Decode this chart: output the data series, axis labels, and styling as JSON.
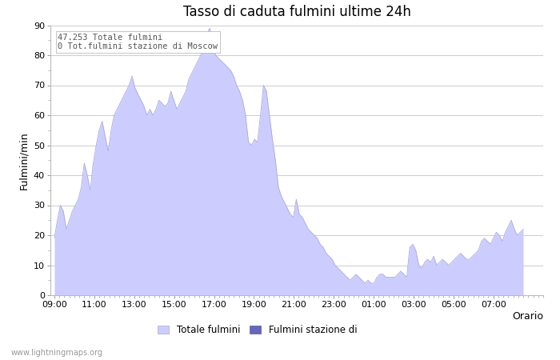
{
  "title": "Tasso di caduta fulmini ultime 24h",
  "xlabel": "Orario",
  "ylabel": "Fulmini/min",
  "ylim": [
    0,
    90
  ],
  "annotation": "47.253 Totale fulmini\n0 Tot.fulmini stazione di Moscow",
  "legend_labels": [
    "Totale fulmini",
    "Fulmini stazione di"
  ],
  "fill_color": "#ccccff",
  "fill_color2": "#6666bb",
  "watermark": "www.lightningmaps.org",
  "x_ticks": [
    "09:00",
    "11:00",
    "13:00",
    "15:00",
    "17:00",
    "19:00",
    "21:00",
    "23:00",
    "01:00",
    "03:00",
    "05:00",
    "07:00"
  ],
  "background_color": "#ffffff",
  "grid_color": "#cccccc",
  "y_values": [
    19,
    25,
    30,
    28,
    22,
    25,
    28,
    30,
    32,
    36,
    44,
    40,
    35,
    44,
    50,
    55,
    58,
    53,
    48,
    55,
    60,
    62,
    64,
    66,
    68,
    70,
    73,
    69,
    67,
    65,
    63,
    60,
    62,
    60,
    62,
    65,
    64,
    63,
    64,
    68,
    65,
    62,
    64,
    66,
    68,
    72,
    74,
    76,
    78,
    80,
    83,
    87,
    89,
    84,
    80,
    79,
    78,
    77,
    76,
    75,
    73,
    70,
    68,
    65,
    60,
    51,
    50,
    52,
    51,
    60,
    70,
    68,
    60,
    52,
    45,
    36,
    33,
    31,
    29,
    27,
    26,
    32,
    27,
    26,
    24,
    22,
    21,
    20,
    19,
    17,
    16,
    14,
    13,
    12,
    10,
    9,
    8,
    7,
    6,
    5,
    6,
    7,
    6,
    5,
    4,
    5,
    4,
    4,
    6,
    7,
    7,
    6,
    6,
    6,
    6,
    7,
    8,
    7,
    6,
    16,
    17,
    15,
    10,
    9,
    11,
    12,
    11,
    13,
    10,
    11,
    12,
    11,
    10,
    11,
    12,
    13,
    14,
    13,
    12,
    12,
    13,
    14,
    15,
    18,
    19,
    18,
    17,
    19,
    21,
    20,
    18,
    21,
    23,
    25,
    22,
    20,
    21,
    22
  ]
}
